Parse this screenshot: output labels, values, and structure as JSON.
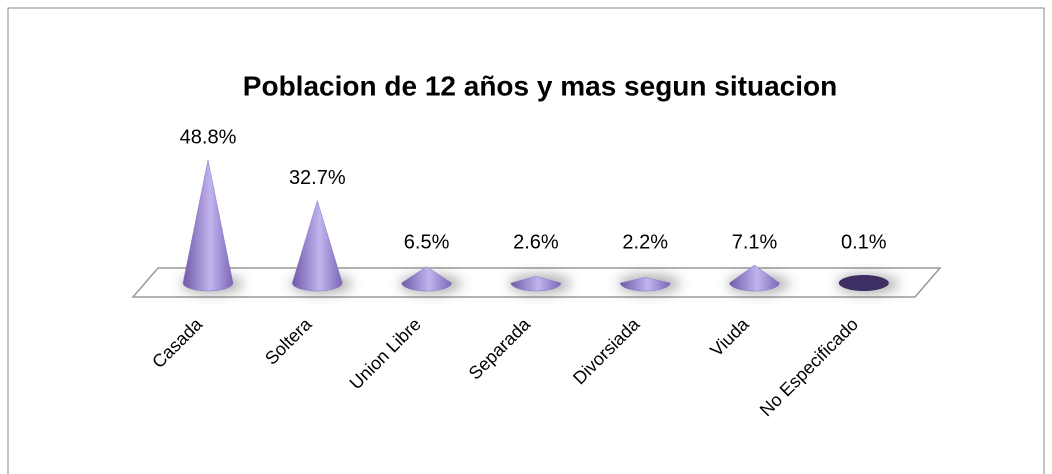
{
  "chart_data": {
    "type": "cone",
    "title": "Poblacion de 12 años y mas segun situacion",
    "categories": [
      "Casada",
      "Soltera",
      "Union Libre",
      "Separada",
      "Divorsiada",
      "Viuda",
      "No Especificado"
    ],
    "values": [
      48.8,
      32.7,
      6.5,
      2.6,
      2.2,
      7.1,
      0.1
    ],
    "value_labels": [
      "48.8%",
      "32.7%",
      "6.5%",
      "2.6%",
      "2.2%",
      "7.1%",
      "0.1%"
    ],
    "color": "#8b77c9"
  }
}
